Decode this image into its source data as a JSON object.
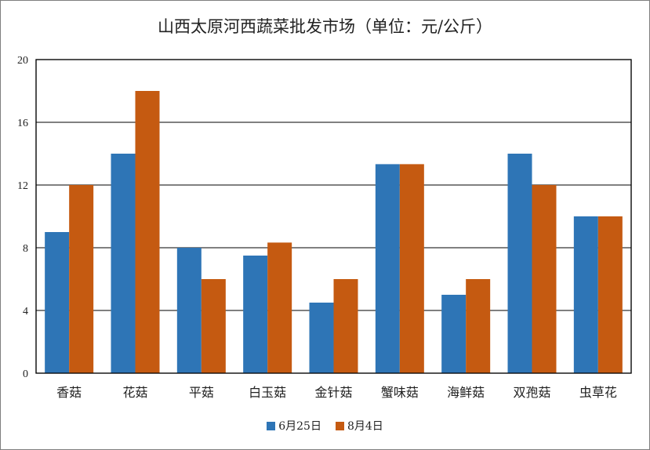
{
  "chart_data": {
    "type": "bar",
    "title": "山西太原河西蔬菜批发市场（单位：元/公斤）",
    "categories": [
      "香菇",
      "花菇",
      "平菇",
      "白玉菇",
      "金针菇",
      "蟹味菇",
      "海鲜菇",
      "双孢菇",
      "虫草花"
    ],
    "series": [
      {
        "name": "6月25日",
        "color": "#2e75b6",
        "values": [
          9,
          14,
          8,
          7.5,
          4.5,
          13.33,
          5,
          14,
          10
        ]
      },
      {
        "name": "8月4日",
        "color": "#c55a11",
        "values": [
          12,
          18,
          6,
          8.33,
          6,
          13.33,
          6,
          12,
          10
        ]
      }
    ],
    "ylim": [
      0,
      20
    ],
    "yticks": [
      0,
      4,
      8,
      12,
      16,
      20
    ],
    "grid": true,
    "legend": "bottom"
  }
}
